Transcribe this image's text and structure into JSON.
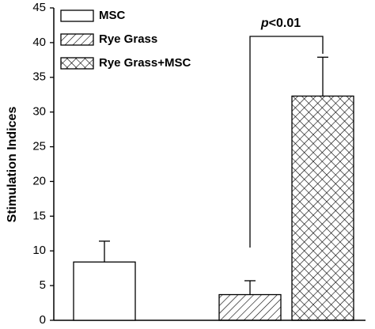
{
  "chart_data": {
    "type": "bar",
    "y_label": "Stimulation Indices",
    "ylim": [
      0,
      45
    ],
    "yticks": [
      0,
      5,
      10,
      15,
      20,
      25,
      30,
      35,
      40,
      45
    ],
    "annotation": {
      "variable": "p",
      "text": "<0.01"
    },
    "series": [
      {
        "name": "MSC",
        "values": [
          8.4
        ],
        "errors": [
          3.0
        ],
        "color": "#000000",
        "pattern": "none"
      },
      {
        "name": "Rye Grass",
        "values": [
          3.7
        ],
        "errors": [
          2.0
        ],
        "color": "#000000",
        "pattern": "hatch"
      },
      {
        "name": "Rye Grass+MSC",
        "values": [
          32.3
        ],
        "errors": [
          5.6
        ],
        "color": "#000000",
        "pattern": "crosshatch"
      }
    ]
  }
}
